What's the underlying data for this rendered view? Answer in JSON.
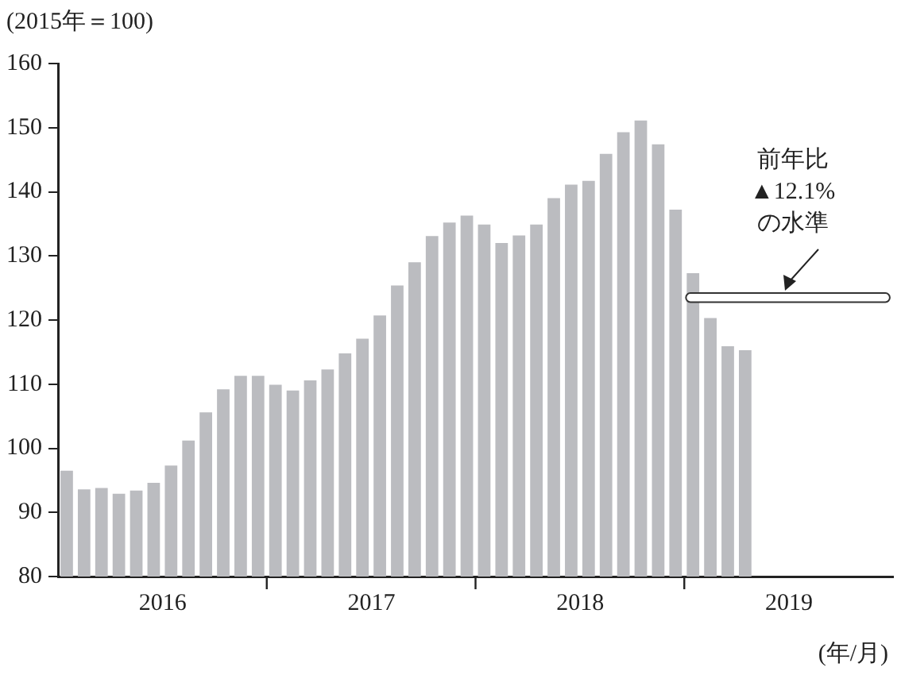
{
  "chart_data": {
    "type": "bar",
    "ylabel": "(2015年＝100)",
    "xlabel": "(年/月)",
    "categories": [
      null,
      null,
      null,
      null,
      null,
      null,
      "2016",
      null,
      null,
      null,
      null,
      null,
      null,
      null,
      null,
      null,
      null,
      null,
      "2017",
      null,
      null,
      null,
      null,
      null,
      null,
      null,
      null,
      null,
      null,
      null,
      "2018",
      null,
      null,
      null,
      null,
      null,
      null,
      null,
      null,
      null,
      null,
      null,
      "2019",
      null,
      null,
      null,
      null,
      null
    ],
    "values": [
      96.5,
      93.6,
      93.8,
      92.9,
      93.4,
      94.6,
      97.3,
      101.2,
      105.6,
      109.2,
      111.3,
      111.3,
      109.9,
      109.0,
      110.6,
      112.3,
      114.8,
      117.1,
      120.7,
      125.4,
      129.0,
      133.1,
      135.2,
      136.3,
      134.9,
      132.0,
      133.2,
      134.9,
      139.0,
      141.1,
      141.7,
      145.9,
      149.3,
      151.1,
      147.4,
      137.2,
      127.3,
      120.3,
      115.9,
      115.3,
      null,
      null,
      null,
      null,
      null,
      null,
      null,
      null
    ],
    "color": "#bbbcc0",
    "ylim": [
      80,
      160
    ],
    "yticks": [
      80,
      90,
      100,
      110,
      120,
      130,
      140,
      150,
      160
    ],
    "grid": false,
    "legend": false,
    "bands": [
      {
        "axis": "y",
        "from": 122.8,
        "to": 124.2,
        "label": "前年比\n▲12.1%\nの水準",
        "color": "#ffffff"
      }
    ]
  }
}
